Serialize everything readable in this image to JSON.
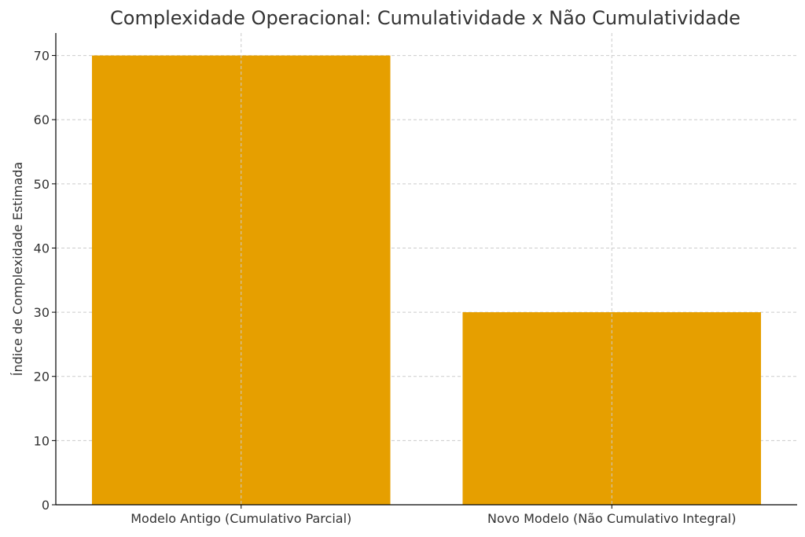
{
  "chart_data": {
    "type": "bar",
    "title": "Complexidade Operacional: Cumulatividade x Não Cumulatividade",
    "xlabel": "",
    "ylabel": "Índice de Complexidade Estimada",
    "categories": [
      "Modelo Antigo (Cumulativo Parcial)",
      "Novo Modelo (Não Cumulativo Integral)"
    ],
    "values": [
      70,
      30
    ],
    "ylim": [
      0,
      73.5
    ],
    "yticks": [
      0,
      10,
      20,
      30,
      40,
      50,
      60,
      70
    ],
    "grid": true,
    "bar_color": "#E69F00"
  }
}
